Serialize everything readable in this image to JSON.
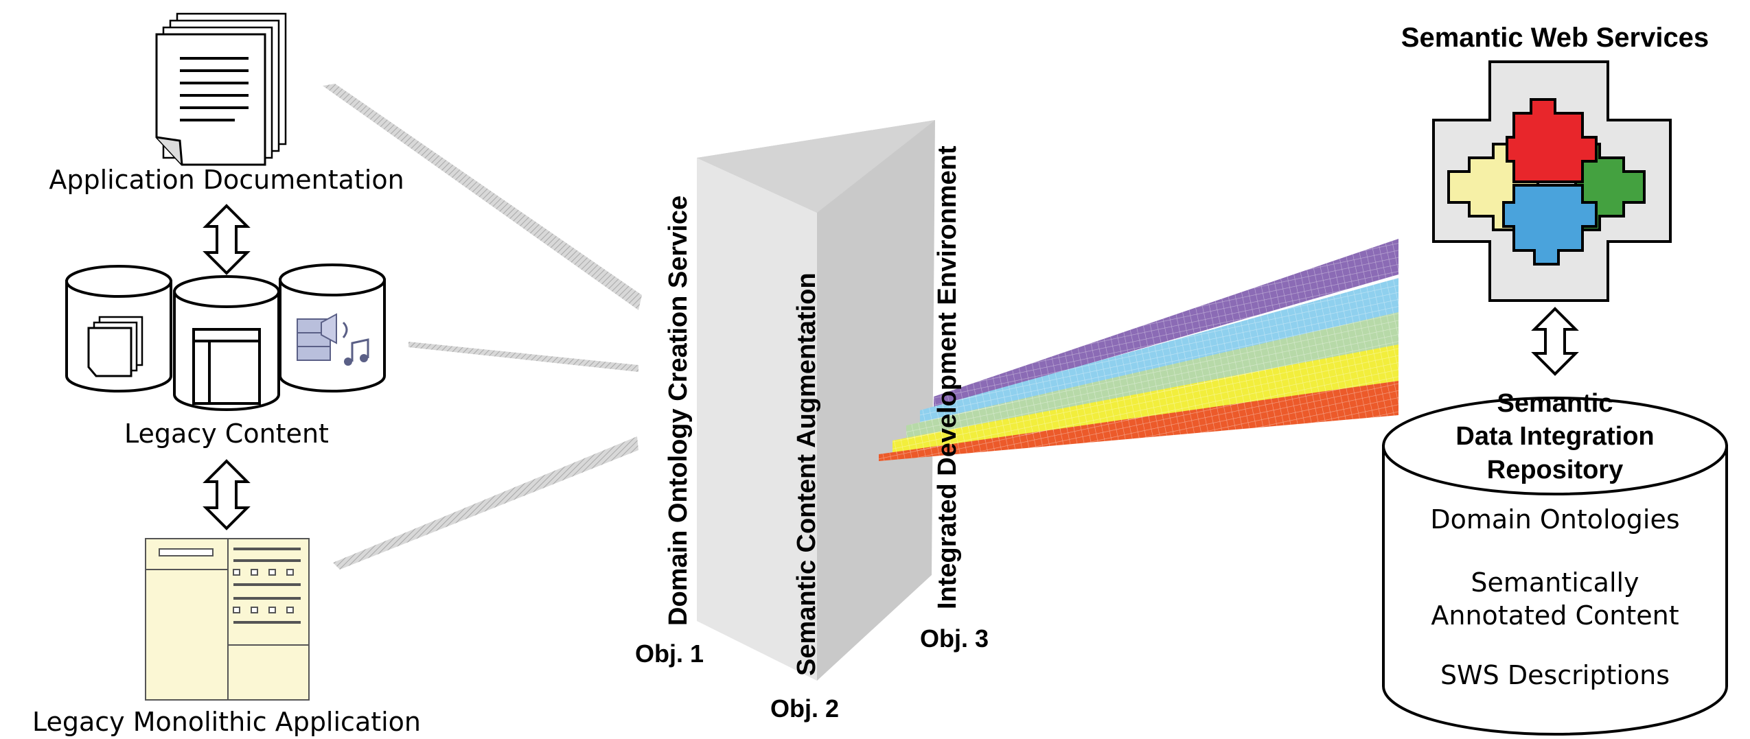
{
  "left": {
    "doc_label": "Application Documentation",
    "legacy_label": "Legacy Content",
    "app_label": "Legacy Monolithic Application"
  },
  "prism": {
    "face1": "Domain Ontology Creation Service",
    "face2": "Semantic Content Augmentation",
    "face3": "Integrated Development Environment",
    "obj1": "Obj. 1",
    "obj2": "Obj. 2",
    "obj3": "Obj. 3"
  },
  "right": {
    "sws_title": "Semantic Web Services",
    "repo_title_1": "Semantic",
    "repo_title_2": "Data Integration",
    "repo_title_3": "Repository",
    "item1": "Domain Ontologies",
    "item2a": "Semantically",
    "item2b": "Annotated Content",
    "item3": "SWS Descriptions"
  },
  "colors": {
    "beam_purple": "#8b6bb5",
    "beam_cyan": "#8fd0ee",
    "beam_green": "#b7d9a8",
    "beam_yellow": "#f2ee3c",
    "beam_red": "#ec5a2a",
    "piece_red": "#e8262b",
    "piece_yellow": "#f6f0a6",
    "piece_green": "#44a140",
    "piece_blue": "#4aa3dc"
  }
}
